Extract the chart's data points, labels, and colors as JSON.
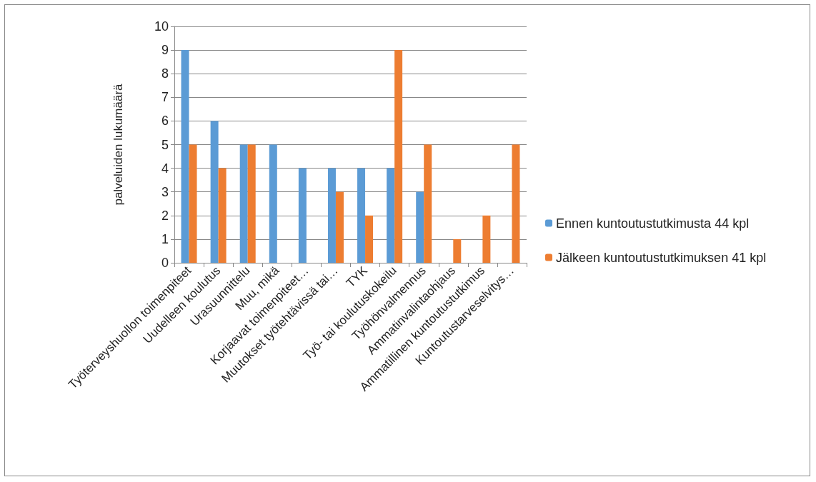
{
  "chart_data": {
    "type": "bar",
    "ylabel": "palveluiden lukumäärä",
    "categories": [
      "Työterveyshuollon toimenpiteet",
      "Uudelleen koulutus",
      "Urasuunnittelu",
      "Muu, mikä",
      "Korjaavat toimenpiteet…",
      "Muutokset työtehtävissä tai…",
      "TYK",
      "Työ- tai koulutuskokeilu",
      "Työhönvalmennus",
      "Ammatinvalintaohjaus",
      "Ammatillinen kuntoutustutkimus",
      "Kuntoutustarveselvitys…"
    ],
    "series": [
      {
        "name": "Ennen kuntoutustutkimusta 44 kpl",
        "color": "#5b9bd5",
        "values": [
          9,
          6,
          5,
          5,
          4,
          4,
          4,
          4,
          3,
          0,
          0,
          0
        ]
      },
      {
        "name": "Jälkeen kuntoutustutkimuksen 41 kpl",
        "color": "#ed7d31",
        "values": [
          5,
          4,
          5,
          0,
          0,
          3,
          2,
          9,
          5,
          1,
          2,
          5
        ]
      }
    ],
    "ylim": [
      0,
      10
    ],
    "yticks": [
      0,
      1,
      2,
      3,
      4,
      5,
      6,
      7,
      8,
      9,
      10
    ],
    "grid": "y",
    "legend": "right"
  }
}
